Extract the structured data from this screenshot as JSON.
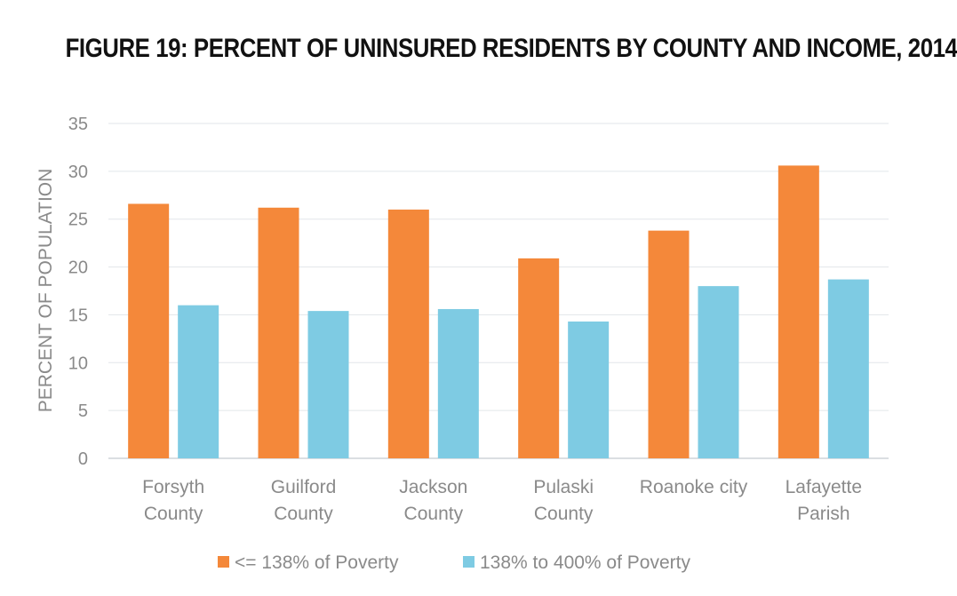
{
  "title": "FIGURE 19: PERCENT OF UNINSURED RESIDENTS BY COUNTY AND INCOME, 2014",
  "chart_data": {
    "type": "bar",
    "ylabel": "PERCENT OF POPULATION",
    "xlabel": "",
    "ylim": [
      0,
      35
    ],
    "yticks": [
      "0",
      "5",
      "10",
      "15",
      "20",
      "25",
      "30",
      "35"
    ],
    "grid": true,
    "legend_position": "bottom",
    "categories": [
      [
        "Forsyth",
        "County"
      ],
      [
        "Guilford",
        "County"
      ],
      [
        "Jackson",
        "County"
      ],
      [
        "Pulaski",
        "County"
      ],
      [
        "Roanoke city"
      ],
      [
        "Lafayette",
        "Parish"
      ]
    ],
    "series": [
      {
        "name": "<= 138% of Poverty",
        "color": "#F4883A",
        "values": [
          26.6,
          26.2,
          26.0,
          20.9,
          23.8,
          30.6
        ]
      },
      {
        "name": "138% to 400% of Poverty",
        "color": "#7ECBE3",
        "values": [
          16.0,
          15.4,
          15.6,
          14.3,
          18.0,
          18.7
        ]
      }
    ]
  }
}
